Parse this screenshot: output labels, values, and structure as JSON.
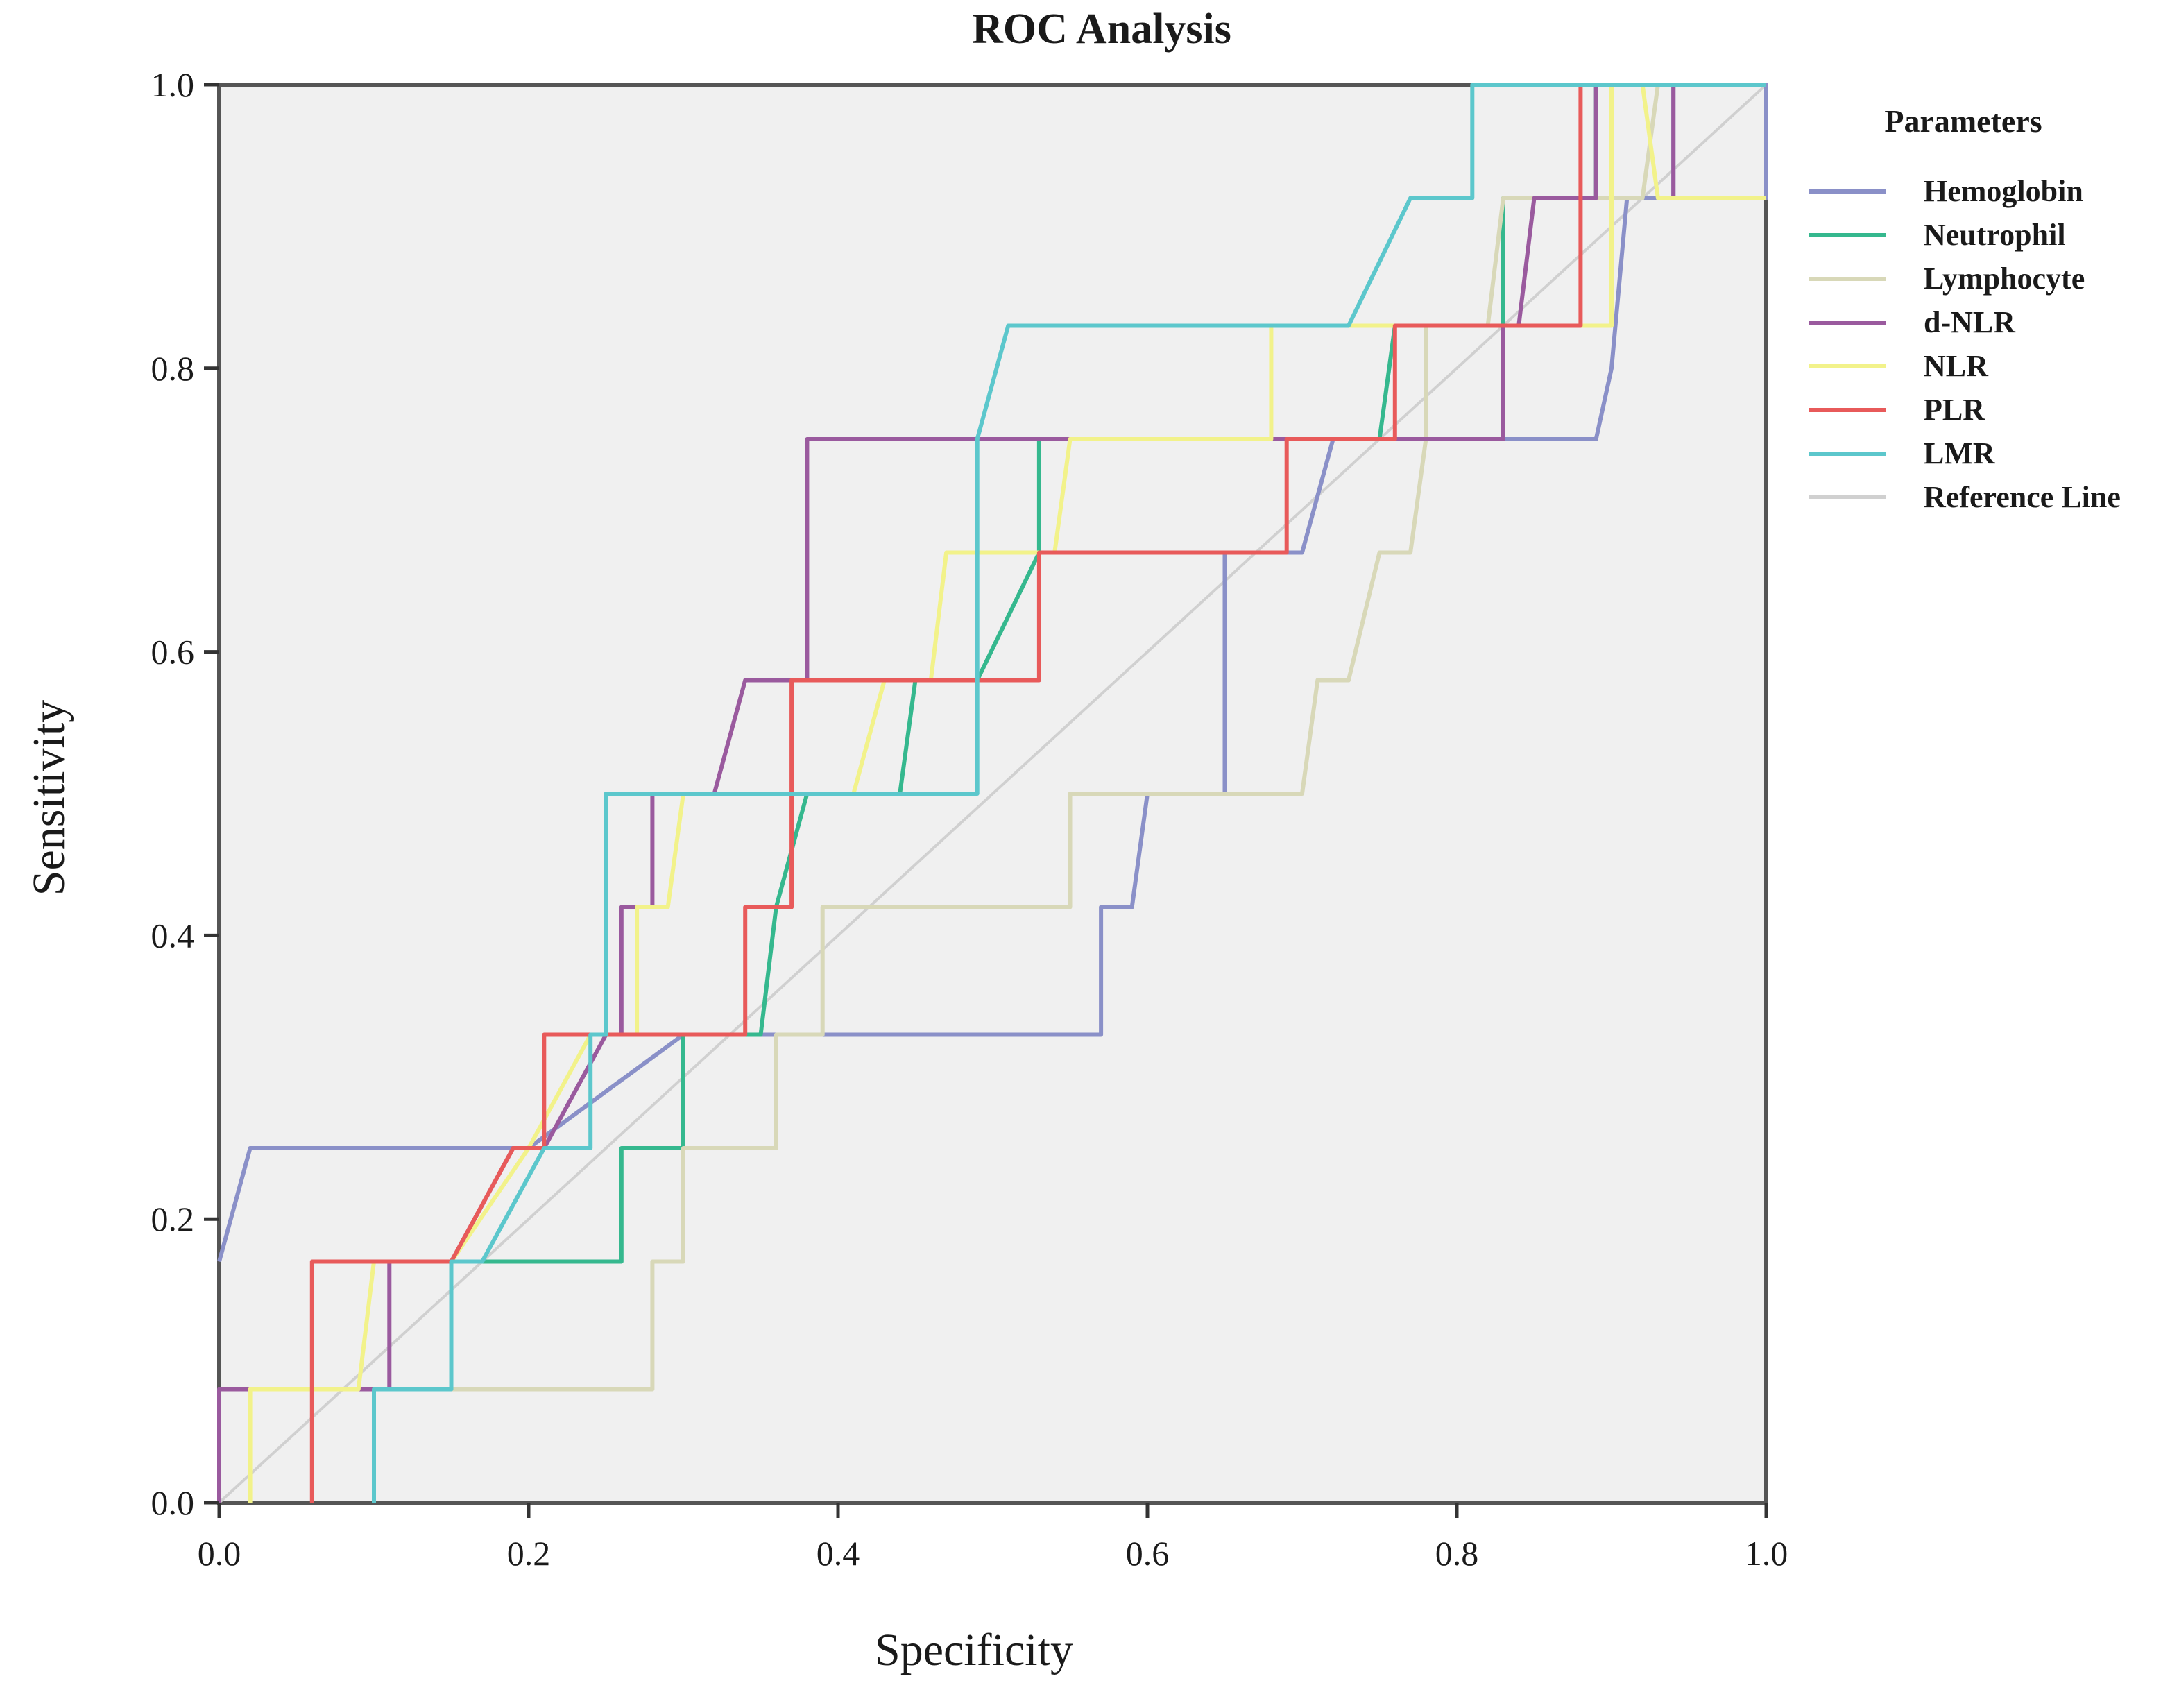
{
  "chart_data": {
    "type": "line",
    "title": "ROC Analysis",
    "xlabel": "Specificity",
    "ylabel": "Sensitivity",
    "xlim": [
      0,
      1
    ],
    "ylim": [
      0,
      1
    ],
    "x_ticks": [
      "0.0",
      "0.2",
      "0.4",
      "0.6",
      "0.8",
      "1.0"
    ],
    "y_ticks": [
      "0.0",
      "0.2",
      "0.4",
      "0.6",
      "0.8",
      "1.0"
    ],
    "grid": false,
    "legend": {
      "title": "Parameters",
      "placement": "right"
    },
    "series": [
      {
        "name": "Hemoglobin",
        "color": "#8a90c8",
        "points": [
          [
            0,
            0.17
          ],
          [
            0.02,
            0.25
          ],
          [
            0.17,
            0.25
          ],
          [
            0.2,
            0.25
          ],
          [
            0.3,
            0.33
          ],
          [
            0.38,
            0.33
          ],
          [
            0.57,
            0.33
          ],
          [
            0.57,
            0.42
          ],
          [
            0.59,
            0.42
          ],
          [
            0.6,
            0.5
          ],
          [
            0.65,
            0.5
          ],
          [
            0.65,
            0.67
          ],
          [
            0.7,
            0.67
          ],
          [
            0.72,
            0.75
          ],
          [
            0.89,
            0.75
          ],
          [
            0.9,
            0.8
          ],
          [
            0.91,
            0.92
          ],
          [
            0.94,
            0.92
          ],
          [
            0.94,
            1.0
          ],
          [
            1.0,
            1.0
          ],
          [
            1.0,
            0.92
          ],
          [
            0.94,
            0.92
          ]
        ]
      },
      {
        "name": "Neutrophil",
        "color": "#35b88e",
        "points": [
          [
            0,
            0.08
          ],
          [
            0.15,
            0.08
          ],
          [
            0.15,
            0.17
          ],
          [
            0.19,
            0.17
          ],
          [
            0.26,
            0.17
          ],
          [
            0.26,
            0.25
          ],
          [
            0.3,
            0.25
          ],
          [
            0.3,
            0.33
          ],
          [
            0.35,
            0.33
          ],
          [
            0.36,
            0.42
          ],
          [
            0.38,
            0.5
          ],
          [
            0.44,
            0.5
          ],
          [
            0.45,
            0.58
          ],
          [
            0.49,
            0.58
          ],
          [
            0.53,
            0.67
          ],
          [
            0.53,
            0.75
          ],
          [
            0.75,
            0.75
          ],
          [
            0.76,
            0.83
          ],
          [
            0.83,
            0.83
          ],
          [
            0.83,
            0.92
          ],
          [
            0.89,
            0.92
          ],
          [
            0.89,
            1.0
          ],
          [
            1.0,
            1.0
          ]
        ]
      },
      {
        "name": "Lymphocyte",
        "color": "#d8d8b8",
        "points": [
          [
            0,
            0.08
          ],
          [
            0.28,
            0.08
          ],
          [
            0.28,
            0.17
          ],
          [
            0.3,
            0.17
          ],
          [
            0.3,
            0.25
          ],
          [
            0.36,
            0.25
          ],
          [
            0.36,
            0.33
          ],
          [
            0.39,
            0.33
          ],
          [
            0.39,
            0.42
          ],
          [
            0.55,
            0.42
          ],
          [
            0.55,
            0.5
          ],
          [
            0.7,
            0.5
          ],
          [
            0.71,
            0.58
          ],
          [
            0.73,
            0.58
          ],
          [
            0.75,
            0.67
          ],
          [
            0.77,
            0.67
          ],
          [
            0.78,
            0.75
          ],
          [
            0.78,
            0.83
          ],
          [
            0.82,
            0.83
          ],
          [
            0.83,
            0.92
          ],
          [
            0.92,
            0.92
          ],
          [
            0.93,
            1.0
          ],
          [
            1.0,
            1.0
          ]
        ]
      },
      {
        "name": "d-NLR",
        "color": "#9a5a9e",
        "points": [
          [
            0,
            0
          ],
          [
            0,
            0.08
          ],
          [
            0.11,
            0.08
          ],
          [
            0.11,
            0.17
          ],
          [
            0.15,
            0.17
          ],
          [
            0.19,
            0.25
          ],
          [
            0.21,
            0.25
          ],
          [
            0.25,
            0.33
          ],
          [
            0.26,
            0.33
          ],
          [
            0.26,
            0.42
          ],
          [
            0.28,
            0.42
          ],
          [
            0.28,
            0.5
          ],
          [
            0.32,
            0.5
          ],
          [
            0.34,
            0.58
          ],
          [
            0.38,
            0.58
          ],
          [
            0.38,
            0.75
          ],
          [
            0.83,
            0.75
          ],
          [
            0.83,
            0.83
          ],
          [
            0.84,
            0.83
          ],
          [
            0.85,
            0.92
          ],
          [
            0.89,
            0.92
          ],
          [
            0.89,
            1.0
          ],
          [
            0.94,
            1.0
          ],
          [
            0.94,
            0.92
          ],
          [
            1.0,
            0.92
          ]
        ]
      },
      {
        "name": "NLR",
        "color": "#f2f28a",
        "points": [
          [
            0.02,
            0
          ],
          [
            0.02,
            0.08
          ],
          [
            0.09,
            0.08
          ],
          [
            0.1,
            0.17
          ],
          [
            0.15,
            0.17
          ],
          [
            0.2,
            0.25
          ],
          [
            0.24,
            0.33
          ],
          [
            0.27,
            0.33
          ],
          [
            0.27,
            0.42
          ],
          [
            0.29,
            0.42
          ],
          [
            0.3,
            0.5
          ],
          [
            0.41,
            0.5
          ],
          [
            0.43,
            0.58
          ],
          [
            0.46,
            0.58
          ],
          [
            0.47,
            0.67
          ],
          [
            0.54,
            0.67
          ],
          [
            0.55,
            0.75
          ],
          [
            0.68,
            0.75
          ],
          [
            0.68,
            0.83
          ],
          [
            0.9,
            0.83
          ],
          [
            0.9,
            1.0
          ],
          [
            0.92,
            1.0
          ],
          [
            0.93,
            0.92
          ],
          [
            1.0,
            0.92
          ]
        ]
      },
      {
        "name": "PLR",
        "color": "#e85a5a",
        "points": [
          [
            0.06,
            0
          ],
          [
            0.06,
            0.17
          ],
          [
            0.15,
            0.17
          ],
          [
            0.19,
            0.25
          ],
          [
            0.21,
            0.25
          ],
          [
            0.21,
            0.33
          ],
          [
            0.34,
            0.33
          ],
          [
            0.34,
            0.42
          ],
          [
            0.37,
            0.42
          ],
          [
            0.37,
            0.58
          ],
          [
            0.53,
            0.58
          ],
          [
            0.53,
            0.67
          ],
          [
            0.69,
            0.67
          ],
          [
            0.69,
            0.75
          ],
          [
            0.76,
            0.75
          ],
          [
            0.76,
            0.83
          ],
          [
            0.88,
            0.83
          ],
          [
            0.88,
            1.0
          ],
          [
            1.0,
            1.0
          ]
        ]
      },
      {
        "name": "LMR",
        "color": "#5cc7cc",
        "points": [
          [
            0.1,
            0
          ],
          [
            0.1,
            0.08
          ],
          [
            0.15,
            0.08
          ],
          [
            0.15,
            0.17
          ],
          [
            0.17,
            0.17
          ],
          [
            0.21,
            0.25
          ],
          [
            0.24,
            0.25
          ],
          [
            0.24,
            0.33
          ],
          [
            0.25,
            0.33
          ],
          [
            0.25,
            0.5
          ],
          [
            0.49,
            0.5
          ],
          [
            0.49,
            0.75
          ],
          [
            0.51,
            0.83
          ],
          [
            0.73,
            0.83
          ],
          [
            0.77,
            0.92
          ],
          [
            0.81,
            0.92
          ],
          [
            0.81,
            1.0
          ],
          [
            1.0,
            1.0
          ]
        ]
      },
      {
        "name": "Reference Line",
        "color": "#d0d0d0",
        "points": [
          [
            0,
            0
          ],
          [
            1,
            1
          ]
        ]
      }
    ]
  }
}
